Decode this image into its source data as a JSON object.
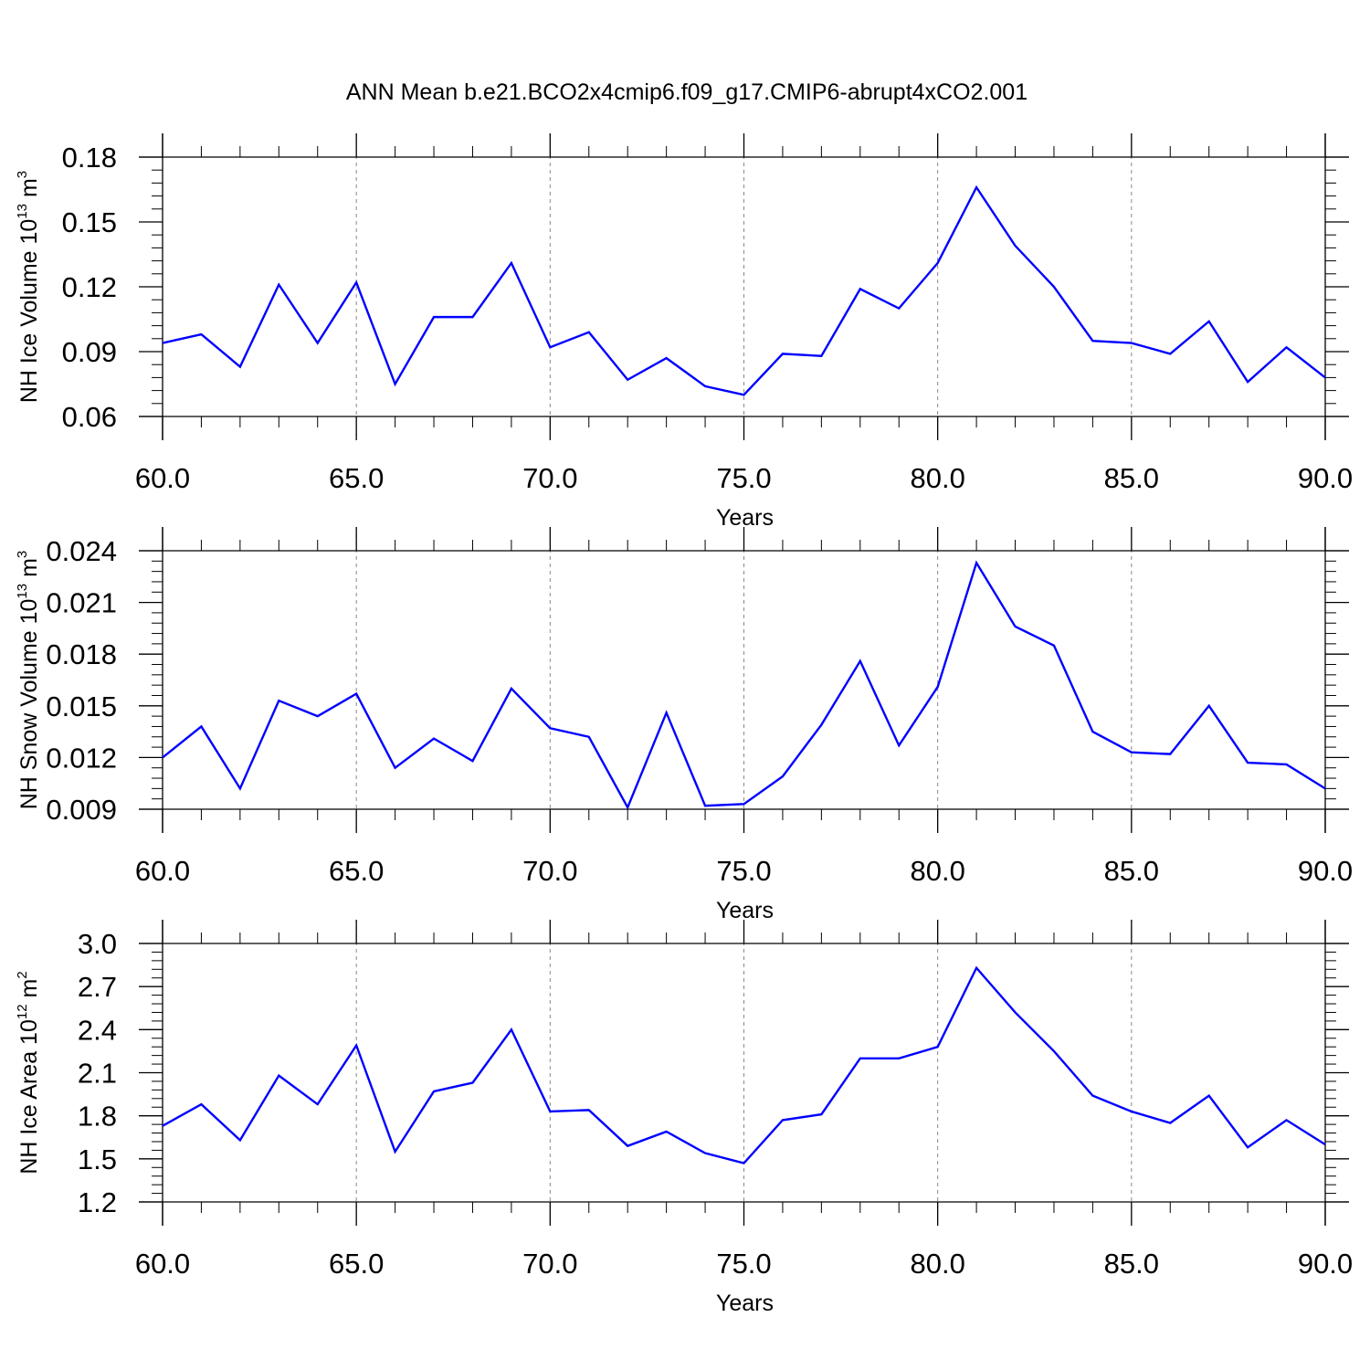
{
  "title": "ANN Mean b.e21.BCO2x4cmip6.f09_g17.CMIP6-abrupt4xCO2.001",
  "colors": {
    "line": "#0000ff",
    "axis": "#000000",
    "grid": "#888888",
    "background": "#ffffff"
  },
  "chart_data": [
    {
      "type": "line",
      "ylabel": {
        "base": "NH Ice Volume 10",
        "exponent": "13",
        "unit": " m",
        "unit_exponent": "3"
      },
      "xlabel": "Years",
      "xlim": [
        60,
        90
      ],
      "ylim": [
        0.06,
        0.18
      ],
      "xticks": [
        60,
        65,
        70,
        75,
        80,
        85,
        90
      ],
      "xtick_labels": [
        "60.0",
        "65.0",
        "70.0",
        "75.0",
        "80.0",
        "85.0",
        "90.0"
      ],
      "yticks": [
        0.06,
        0.09,
        0.12,
        0.15,
        0.18
      ],
      "ytick_labels": [
        "0.06",
        "0.09",
        "0.12",
        "0.15",
        "0.18"
      ],
      "grid": "vertical dashed at major x ticks",
      "x": [
        60,
        61,
        62,
        63,
        64,
        65,
        66,
        67,
        68,
        69,
        70,
        71,
        72,
        73,
        74,
        75,
        76,
        77,
        78,
        79,
        80,
        81,
        82,
        83,
        84,
        85,
        86,
        87,
        88,
        89,
        90
      ],
      "series": [
        {
          "values": [
            0.094,
            0.098,
            0.083,
            0.121,
            0.094,
            0.122,
            0.075,
            0.106,
            0.106,
            0.131,
            0.092,
            0.099,
            0.077,
            0.087,
            0.074,
            0.07,
            0.089,
            0.088,
            0.119,
            0.11,
            0.131,
            0.166,
            0.139,
            0.12,
            0.095,
            0.094,
            0.089,
            0.104,
            0.076,
            0.092,
            0.078
          ]
        }
      ]
    },
    {
      "type": "line",
      "ylabel": {
        "base": "NH Snow Volume 10",
        "exponent": "13",
        "unit": " m",
        "unit_exponent": "3"
      },
      "xlabel": "Years",
      "xlim": [
        60,
        90
      ],
      "ylim": [
        0.009,
        0.024
      ],
      "xticks": [
        60,
        65,
        70,
        75,
        80,
        85,
        90
      ],
      "xtick_labels": [
        "60.0",
        "65.0",
        "70.0",
        "75.0",
        "80.0",
        "85.0",
        "90.0"
      ],
      "yticks": [
        0.009,
        0.012,
        0.015,
        0.018,
        0.021,
        0.024
      ],
      "ytick_labels": [
        "0.009",
        "0.012",
        "0.015",
        "0.018",
        "0.021",
        "0.024"
      ],
      "grid": "vertical dashed at major x ticks",
      "x": [
        60,
        61,
        62,
        63,
        64,
        65,
        66,
        67,
        68,
        69,
        70,
        71,
        72,
        73,
        74,
        75,
        76,
        77,
        78,
        79,
        80,
        81,
        82,
        83,
        84,
        85,
        86,
        87,
        88,
        89,
        90
      ],
      "series": [
        {
          "values": [
            0.012,
            0.0138,
            0.0102,
            0.0153,
            0.0144,
            0.0157,
            0.0114,
            0.0131,
            0.0118,
            0.016,
            0.0137,
            0.0132,
            0.0091,
            0.0146,
            0.0092,
            0.0093,
            0.0109,
            0.0139,
            0.0176,
            0.0127,
            0.0161,
            0.0233,
            0.0196,
            0.0185,
            0.0135,
            0.0123,
            0.0122,
            0.015,
            0.0117,
            0.0116,
            0.0102
          ]
        }
      ]
    },
    {
      "type": "line",
      "ylabel": {
        "base": "NH Ice Area 10",
        "exponent": "12",
        "unit": " m",
        "unit_exponent": "2"
      },
      "xlabel": "Years",
      "xlim": [
        60,
        90
      ],
      "ylim": [
        1.2,
        3.0
      ],
      "xticks": [
        60,
        65,
        70,
        75,
        80,
        85,
        90
      ],
      "xtick_labels": [
        "60.0",
        "65.0",
        "70.0",
        "75.0",
        "80.0",
        "85.0",
        "90.0"
      ],
      "yticks": [
        1.2,
        1.5,
        1.8,
        2.1,
        2.4,
        2.7,
        3.0
      ],
      "ytick_labels": [
        "1.2",
        "1.5",
        "1.8",
        "2.1",
        "2.4",
        "2.7",
        "3.0"
      ],
      "grid": "vertical dashed at major x ticks",
      "x": [
        60,
        61,
        62,
        63,
        64,
        65,
        66,
        67,
        68,
        69,
        70,
        71,
        72,
        73,
        74,
        75,
        76,
        77,
        78,
        79,
        80,
        81,
        82,
        83,
        84,
        85,
        86,
        87,
        88,
        89,
        90
      ],
      "series": [
        {
          "values": [
            1.73,
            1.88,
            1.63,
            2.08,
            1.88,
            2.29,
            1.55,
            1.97,
            2.03,
            2.4,
            1.83,
            1.84,
            1.59,
            1.69,
            1.54,
            1.47,
            1.77,
            1.81,
            2.2,
            2.2,
            2.28,
            2.83,
            2.52,
            2.25,
            1.94,
            1.83,
            1.75,
            1.94,
            1.58,
            1.77,
            1.6
          ]
        }
      ]
    }
  ]
}
